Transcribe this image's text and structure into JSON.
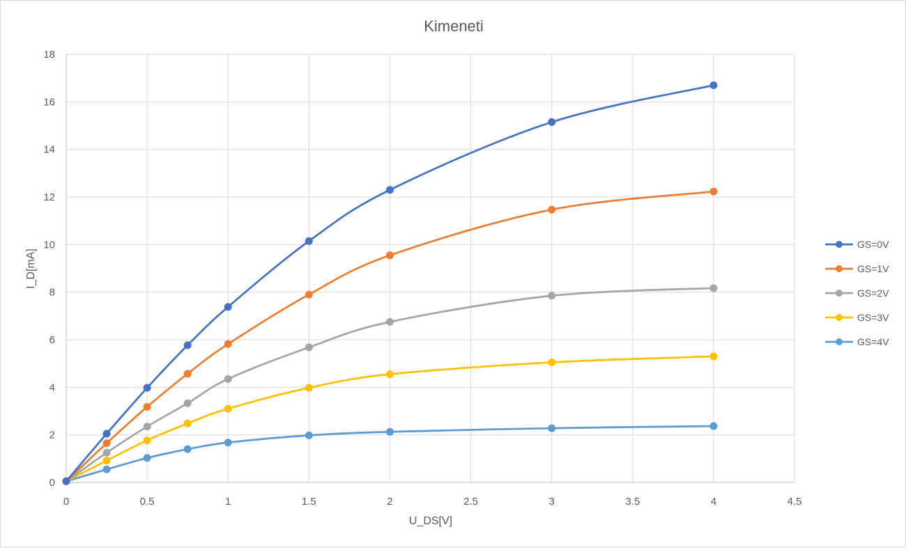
{
  "chart_data": {
    "type": "scatter",
    "title": "Kimeneti",
    "xlabel": "U_DS[V]",
    "ylabel": "I_D[mA]",
    "xlim": [
      0,
      4.5
    ],
    "ylim": [
      0,
      18
    ],
    "xticks": [
      0,
      0.5,
      1,
      1.5,
      2,
      2.5,
      3,
      3.5,
      4,
      4.5
    ],
    "xtick_labels": [
      "0",
      "0.5",
      "1",
      "1.5",
      "2",
      "2.5",
      "3",
      "3.5",
      "4",
      "4.5"
    ],
    "yticks": [
      0,
      2,
      4,
      6,
      8,
      10,
      12,
      14,
      16,
      18
    ],
    "ytick_labels": [
      "0",
      "2",
      "4",
      "6",
      "8",
      "10",
      "12",
      "14",
      "16",
      "18"
    ],
    "grid": true,
    "smooth": true,
    "legend_position": "right",
    "x": [
      0,
      0.25,
      0.5,
      0.75,
      1,
      1.5,
      2,
      3,
      4
    ],
    "series": [
      {
        "name": "GS=0V",
        "color": "#4472C4",
        "values": [
          0.05,
          2.05,
          3.98,
          5.77,
          7.38,
          10.15,
          12.3,
          15.15,
          16.7
        ]
      },
      {
        "name": "GS=1V",
        "color": "#ED7D31",
        "values": [
          0.05,
          1.65,
          3.18,
          4.57,
          5.82,
          7.9,
          9.55,
          11.47,
          12.23
        ]
      },
      {
        "name": "GS=2V",
        "color": "#A5A5A5",
        "values": [
          0.05,
          1.25,
          2.35,
          3.33,
          4.35,
          5.68,
          6.75,
          7.85,
          8.17
        ]
      },
      {
        "name": "GS=3V",
        "color": "#FFC000",
        "values": [
          0.05,
          0.92,
          1.77,
          2.48,
          3.1,
          3.98,
          4.55,
          5.05,
          5.3
        ]
      },
      {
        "name": "GS=4V",
        "color": "#5B9BD5",
        "values": [
          0.05,
          0.55,
          1.03,
          1.4,
          1.68,
          1.98,
          2.13,
          2.28,
          2.37
        ]
      }
    ]
  }
}
